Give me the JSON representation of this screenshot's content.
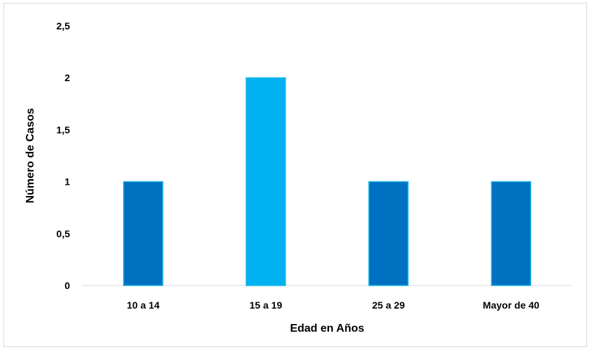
{
  "chart_data": {
    "type": "bar",
    "categories": [
      "10 a 14",
      "15 a 19",
      "25 a 29",
      "Mayor de 40"
    ],
    "values": [
      1,
      2,
      1,
      1
    ],
    "xlabel": "Edad en Años",
    "ylabel": "Número de Casos",
    "ylim": [
      0,
      2.5
    ],
    "yticks": [
      "0",
      "0,5",
      "1",
      "1,5",
      "2",
      "2,5"
    ],
    "grid": false,
    "legend": "none",
    "bar_colors": [
      "#0070c0",
      "#00b0f0",
      "#0070c0",
      "#0070c0"
    ],
    "bar_border_color": "#1fb6e8"
  }
}
